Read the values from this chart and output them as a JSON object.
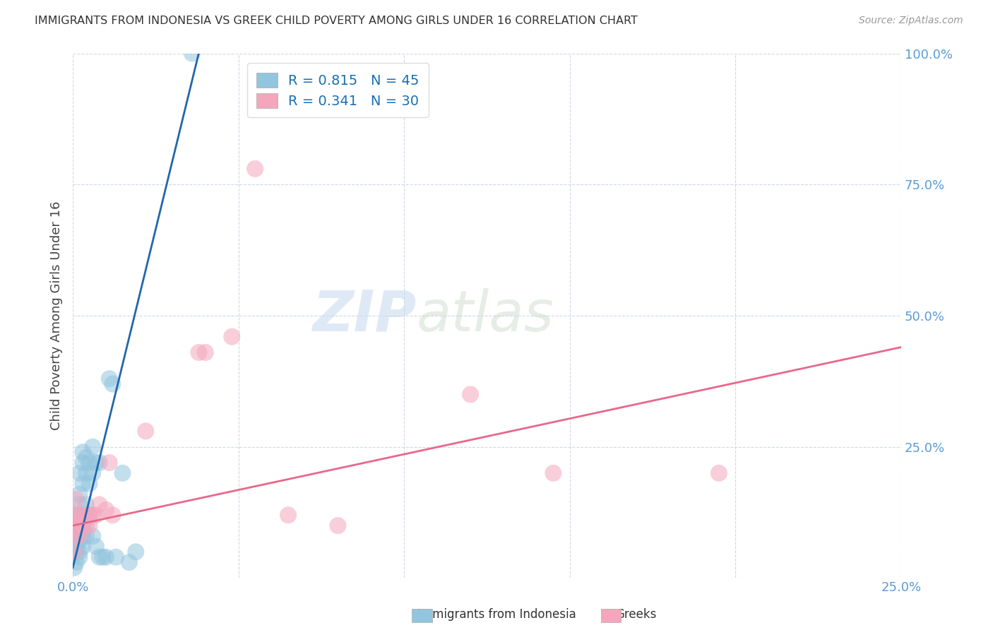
{
  "title": "IMMIGRANTS FROM INDONESIA VS GREEK CHILD POVERTY AMONG GIRLS UNDER 16 CORRELATION CHART",
  "source": "Source: ZipAtlas.com",
  "ylabel": "Child Poverty Among Girls Under 16",
  "xlim": [
    0.0,
    0.25
  ],
  "ylim": [
    0.0,
    1.0
  ],
  "blue_R": 0.815,
  "blue_N": 45,
  "pink_R": 0.341,
  "pink_N": 30,
  "blue_color": "#92c5de",
  "pink_color": "#f4a6bd",
  "blue_line_color": "#2166ac",
  "pink_line_color": "#e8688a",
  "legend_label_blue": "Immigrants from Indonesia",
  "legend_label_pink": "Greeks",
  "watermark_zip": "ZIP",
  "watermark_atlas": "atlas",
  "tick_color": "#5b9bd5",
  "grid_color": "#d0d8e8",
  "blue_scatter": [
    [
      0.0005,
      0.02
    ],
    [
      0.001,
      0.03
    ],
    [
      0.001,
      0.05
    ],
    [
      0.001,
      0.06
    ],
    [
      0.001,
      0.07
    ],
    [
      0.001,
      0.08
    ],
    [
      0.001,
      0.1
    ],
    [
      0.001,
      0.12
    ],
    [
      0.002,
      0.04
    ],
    [
      0.002,
      0.05
    ],
    [
      0.002,
      0.07
    ],
    [
      0.002,
      0.09
    ],
    [
      0.002,
      0.12
    ],
    [
      0.002,
      0.14
    ],
    [
      0.002,
      0.16
    ],
    [
      0.002,
      0.2
    ],
    [
      0.003,
      0.06
    ],
    [
      0.003,
      0.08
    ],
    [
      0.003,
      0.1
    ],
    [
      0.003,
      0.18
    ],
    [
      0.003,
      0.22
    ],
    [
      0.003,
      0.24
    ],
    [
      0.004,
      0.08
    ],
    [
      0.004,
      0.14
    ],
    [
      0.004,
      0.2
    ],
    [
      0.004,
      0.23
    ],
    [
      0.005,
      0.12
    ],
    [
      0.005,
      0.18
    ],
    [
      0.005,
      0.22
    ],
    [
      0.006,
      0.08
    ],
    [
      0.006,
      0.2
    ],
    [
      0.006,
      0.25
    ],
    [
      0.007,
      0.06
    ],
    [
      0.007,
      0.22
    ],
    [
      0.008,
      0.04
    ],
    [
      0.008,
      0.22
    ],
    [
      0.009,
      0.04
    ],
    [
      0.01,
      0.04
    ],
    [
      0.011,
      0.38
    ],
    [
      0.012,
      0.37
    ],
    [
      0.013,
      0.04
    ],
    [
      0.015,
      0.2
    ],
    [
      0.017,
      0.03
    ],
    [
      0.019,
      0.05
    ],
    [
      0.036,
      1.0
    ]
  ],
  "pink_scatter": [
    [
      0.0005,
      0.05
    ],
    [
      0.001,
      0.08
    ],
    [
      0.001,
      0.1
    ],
    [
      0.001,
      0.12
    ],
    [
      0.001,
      0.15
    ],
    [
      0.002,
      0.08
    ],
    [
      0.002,
      0.1
    ],
    [
      0.002,
      0.12
    ],
    [
      0.003,
      0.1
    ],
    [
      0.003,
      0.12
    ],
    [
      0.004,
      0.1
    ],
    [
      0.004,
      0.12
    ],
    [
      0.005,
      0.1
    ],
    [
      0.005,
      0.12
    ],
    [
      0.006,
      0.12
    ],
    [
      0.007,
      0.12
    ],
    [
      0.008,
      0.14
    ],
    [
      0.01,
      0.13
    ],
    [
      0.011,
      0.22
    ],
    [
      0.012,
      0.12
    ],
    [
      0.022,
      0.28
    ],
    [
      0.038,
      0.43
    ],
    [
      0.04,
      0.43
    ],
    [
      0.048,
      0.46
    ],
    [
      0.055,
      0.78
    ],
    [
      0.065,
      0.12
    ],
    [
      0.08,
      0.1
    ],
    [
      0.12,
      0.35
    ],
    [
      0.145,
      0.2
    ],
    [
      0.195,
      0.2
    ]
  ],
  "blue_line": [
    [
      0.0,
      0.02
    ],
    [
      0.038,
      1.0
    ]
  ],
  "pink_line": [
    [
      0.0,
      0.1
    ],
    [
      0.25,
      0.44
    ]
  ]
}
